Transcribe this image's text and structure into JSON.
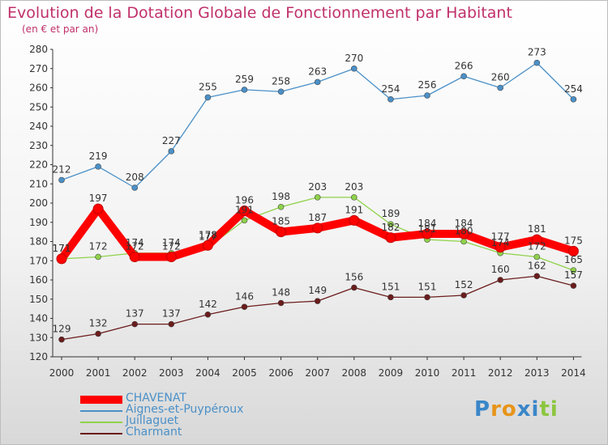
{
  "chart_data": {
    "type": "line",
    "title": "Evolution de la Dotation Globale de Fonctionnement par Habitant",
    "subtitle": "(en € et par an)",
    "x": [
      "2000",
      "2001",
      "2002",
      "2003",
      "2004",
      "2005",
      "2006",
      "2007",
      "2008",
      "2009",
      "2010",
      "2011",
      "2012",
      "2013",
      "2014"
    ],
    "ylim": [
      120,
      280
    ],
    "yticks": [
      120,
      130,
      140,
      150,
      160,
      170,
      180,
      190,
      200,
      210,
      220,
      230,
      240,
      250,
      260,
      270,
      280
    ],
    "grid": false,
    "legend_position": "bottom-left",
    "series": [
      {
        "name": "CHAVENAT",
        "color": "#ff0000",
        "values": [
          171,
          197,
          172,
          172,
          178,
          196,
          185,
          187,
          191,
          182,
          184,
          184,
          177,
          181,
          175
        ]
      },
      {
        "name": "Aignes-et-Puypéroux",
        "color": "#4a90c8",
        "values": [
          212,
          219,
          208,
          227,
          255,
          259,
          258,
          263,
          270,
          254,
          256,
          266,
          260,
          273,
          254
        ]
      },
      {
        "name": "Juillaguet",
        "color": "#8fd24a",
        "values": [
          171,
          172,
          174,
          174,
          177,
          191,
          198,
          203,
          203,
          189,
          181,
          180,
          174,
          172,
          165
        ]
      },
      {
        "name": "Charmant",
        "color": "#6b1c1c",
        "values": [
          129,
          132,
          137,
          137,
          142,
          146,
          148,
          149,
          156,
          151,
          151,
          152,
          160,
          162,
          157
        ]
      }
    ]
  },
  "logo": {
    "text": "Proxiti",
    "letters": [
      "P",
      "r",
      "o",
      "x",
      "i",
      "t",
      "i"
    ],
    "colors": [
      "#3a86c8",
      "#e8941a",
      "#e8941a",
      "#3a86c8",
      "#3a86c8",
      "#8cc63f",
      "#8cc63f"
    ]
  }
}
